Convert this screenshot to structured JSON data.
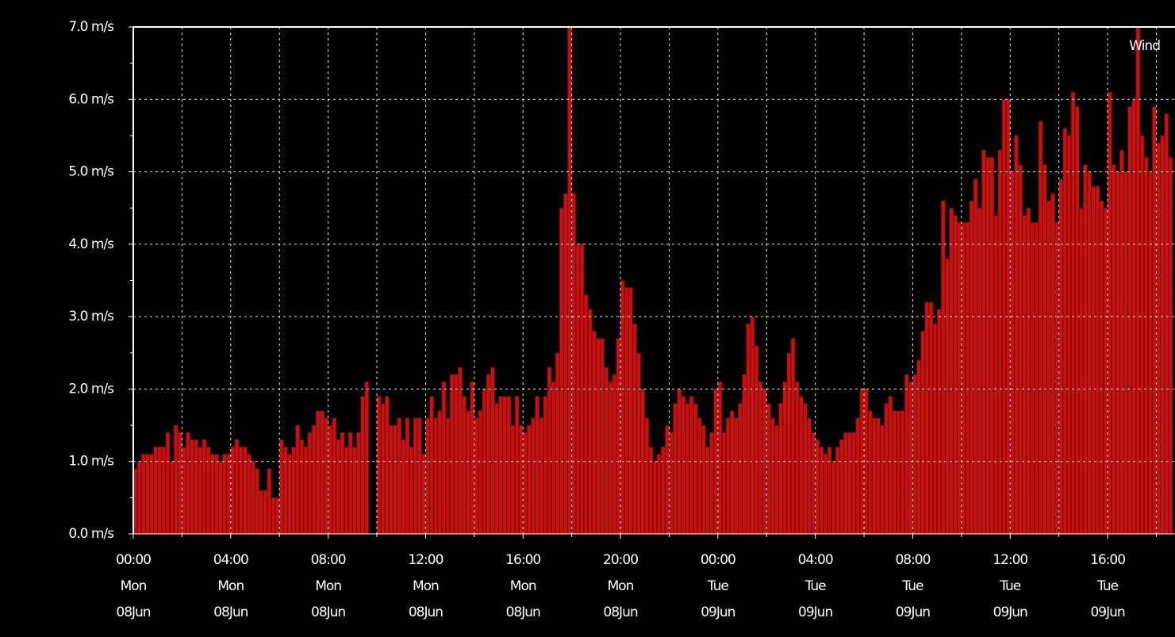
{
  "chart_data": {
    "type": "bar",
    "series": [
      {
        "name": "Wind",
        "color": "#c41212",
        "values": [
          0.9,
          1.0,
          1.1,
          1.1,
          1.1,
          1.2,
          1.2,
          1.2,
          1.4,
          1.0,
          1.5,
          1.4,
          1.2,
          1.4,
          1.3,
          1.3,
          1.2,
          1.3,
          1.2,
          1.1,
          1.1,
          1.0,
          1.1,
          1.1,
          1.2,
          1.3,
          1.2,
          1.2,
          1.1,
          1.0,
          0.9,
          0.6,
          0.6,
          0.9,
          0.5,
          0.5,
          1.3,
          1.2,
          1.1,
          1.2,
          1.5,
          1.3,
          1.2,
          1.4,
          1.5,
          1.7,
          1.7,
          1.6,
          1.5,
          1.6,
          1.3,
          1.4,
          1.2,
          1.4,
          1.2,
          1.4,
          1.9,
          2.1,
          null,
          null,
          1.9,
          1.8,
          1.9,
          1.5,
          1.5,
          1.6,
          1.3,
          1.6,
          1.2,
          1.6,
          1.6,
          1.1,
          1.6,
          1.9,
          1.6,
          1.7,
          2.1,
          1.6,
          2.2,
          2.2,
          2.3,
          1.9,
          1.7,
          2.1,
          1.6,
          1.7,
          2.0,
          2.2,
          2.3,
          1.8,
          1.9,
          1.9,
          1.9,
          1.5,
          1.9,
          1.5,
          1.4,
          1.5,
          1.6,
          1.9,
          1.6,
          1.9,
          2.3,
          2.1,
          2.5,
          4.5,
          4.7,
          7.0,
          4.7,
          4.0,
          4.0,
          3.3,
          3.1,
          2.8,
          2.7,
          2.7,
          2.3,
          2.1,
          2.2,
          2.7,
          3.5,
          3.4,
          3.4,
          2.9,
          2.5,
          2.0,
          1.6,
          1.2,
          1.0,
          1.1,
          1.2,
          1.5,
          1.4,
          1.8,
          2.0,
          1.9,
          1.8,
          1.9,
          1.8,
          1.6,
          1.5,
          1.2,
          1.4,
          2.0,
          2.1,
          1.4,
          1.6,
          1.7,
          1.6,
          1.8,
          2.2,
          2.9,
          3.0,
          2.6,
          2.1,
          2.0,
          1.8,
          1.6,
          1.5,
          1.8,
          2.1,
          2.5,
          2.7,
          2.1,
          1.9,
          1.8,
          1.6,
          1.4,
          1.3,
          1.2,
          1.1,
          1.2,
          1.0,
          1.2,
          1.3,
          1.4,
          1.4,
          1.4,
          1.6,
          2.0,
          2.0,
          1.7,
          1.6,
          1.6,
          1.5,
          1.8,
          1.9,
          1.7,
          1.7,
          1.7,
          2.2,
          2.1,
          2.2,
          2.4,
          2.8,
          3.2,
          3.2,
          2.9,
          3.1,
          4.6,
          3.8,
          4.5,
          4.4,
          4.3,
          4.3,
          4.3,
          4.6,
          4.9,
          4.5,
          5.3,
          5.2,
          5.2,
          4.4,
          5.3,
          6.0,
          6.0,
          5.0,
          5.5,
          5.1,
          4.4,
          4.5,
          4.3,
          4.3,
          5.7,
          5.1,
          4.6,
          4.7,
          4.3,
          4.9,
          5.6,
          5.5,
          6.1,
          5.9,
          4.5,
          5.1,
          5.0,
          4.8,
          4.8,
          4.6,
          4.5,
          6.1,
          5.1,
          5.0,
          5.3,
          5.0,
          5.9,
          6.0,
          7.0,
          5.5,
          5.2,
          5.0,
          5.9,
          5.4,
          5.5,
          5.8,
          5.2
        ]
      }
    ],
    "x": [
      0,
      10,
      20,
      30,
      40,
      50,
      60,
      70,
      80,
      90,
      100,
      110,
      120,
      130,
      140,
      150,
      160,
      170,
      180,
      190,
      200,
      210,
      220,
      230,
      240,
      250,
      260,
      270,
      280,
      290,
      300,
      310,
      320,
      330,
      340,
      350,
      360,
      370,
      380,
      390,
      400,
      410,
      420,
      430,
      440,
      450,
      460,
      470,
      480,
      490,
      500,
      510,
      520,
      530,
      540,
      550,
      560,
      570,
      580,
      590,
      600,
      610,
      620,
      630,
      640,
      650,
      660,
      670,
      680,
      690,
      700,
      710,
      720,
      730,
      740,
      750,
      760,
      770,
      780,
      790,
      800,
      810,
      820,
      830,
      840,
      850,
      860,
      870,
      880,
      890,
      900,
      910,
      920,
      930,
      940,
      950,
      960,
      970,
      980,
      990,
      1000,
      1010,
      1020,
      1030,
      1040,
      1050,
      1060,
      1070,
      1080,
      1090,
      1100,
      1110,
      1120,
      1130,
      1140,
      1150,
      1160,
      1170,
      1180,
      1190,
      1200,
      1210,
      1220,
      1230,
      1240,
      1250,
      1260,
      1270,
      1280,
      1290,
      1300,
      1310,
      1320,
      1330,
      1340,
      1350,
      1360,
      1370,
      1380,
      1390,
      1400,
      1410,
      1420,
      1430,
      1440,
      1450,
      1460,
      1470,
      1480,
      1490,
      1500,
      1510,
      1520,
      1530,
      1540,
      1550,
      1560,
      1570,
      1580,
      1590,
      1600,
      1610,
      1620,
      1630,
      1640,
      1650,
      1660,
      1670,
      1680,
      1690,
      1700,
      1710,
      1720,
      1730,
      1740,
      1750,
      1760,
      1770,
      1780,
      1790,
      1800,
      1810,
      1820,
      1830,
      1840,
      1850,
      1860,
      1870,
      1880,
      1890,
      1900,
      1910,
      1920,
      1930,
      1940,
      1950,
      1960,
      1970,
      1980,
      1990,
      2000,
      2010,
      2020,
      2030,
      2040,
      2050,
      2060,
      2070,
      2080,
      2090,
      2100,
      2110,
      2120,
      2130,
      2140,
      2150,
      2160,
      2170,
      2180,
      2190,
      2200,
      2210,
      2220,
      2230,
      2240,
      2250,
      2260,
      2270,
      2280,
      2290,
      2300,
      2310,
      2320,
      2330,
      2340,
      2350,
      2360,
      2370,
      2380,
      2390,
      2400,
      2410,
      2420,
      2430,
      2440,
      2450,
      2460,
      2470,
      2480,
      2490,
      2500,
      2510,
      2520,
      2530,
      2540,
      2550
    ],
    "bar_width": 10,
    "xlim": [
      0,
      2566
    ],
    "xticks": [
      {
        "value": 0,
        "label": [
          "00:00",
          "Mon",
          "08Jun"
        ]
      },
      {
        "value": 240,
        "label": [
          "04:00",
          "Mon",
          "08Jun"
        ]
      },
      {
        "value": 480,
        "label": [
          "08:00",
          "Mon",
          "08Jun"
        ]
      },
      {
        "value": 720,
        "label": [
          "12:00",
          "Mon",
          "08Jun"
        ]
      },
      {
        "value": 960,
        "label": [
          "16:00",
          "Mon",
          "08Jun"
        ]
      },
      {
        "value": 1200,
        "label": [
          "20:00",
          "Mon",
          "08Jun"
        ]
      },
      {
        "value": 1440,
        "label": [
          "00:00",
          "Tue",
          "09Jun"
        ]
      },
      {
        "value": 1680,
        "label": [
          "04:00",
          "Tue",
          "09Jun"
        ]
      },
      {
        "value": 1920,
        "label": [
          "08:00",
          "Tue",
          "09Jun"
        ]
      },
      {
        "value": 2160,
        "label": [
          "12:00",
          "Tue",
          "09Jun"
        ]
      },
      {
        "value": 2400,
        "label": [
          "16:00",
          "Tue",
          "09Jun"
        ]
      }
    ],
    "x_minor_ticks": [
      120,
      360,
      600,
      840,
      1080,
      1320,
      1560,
      1800,
      2040,
      2280,
      2520
    ],
    "ylim": [
      0,
      7
    ],
    "yticks": [
      {
        "value": 0,
        "label": "0.0 m/s"
      },
      {
        "value": 1,
        "label": "1.0 m/s"
      },
      {
        "value": 2,
        "label": "2.0 m/s"
      },
      {
        "value": 3,
        "label": "3.0 m/s"
      },
      {
        "value": 4,
        "label": "4.0 m/s"
      },
      {
        "value": 5,
        "label": "5.0 m/s"
      },
      {
        "value": 6,
        "label": "6.0 m/s"
      },
      {
        "value": 7,
        "label": "7.0 m/s"
      }
    ],
    "y_minor_ticks": [
      0.5,
      1.5,
      2.5,
      3.5,
      4.5,
      5.5,
      6.5
    ],
    "grid": true
  }
}
